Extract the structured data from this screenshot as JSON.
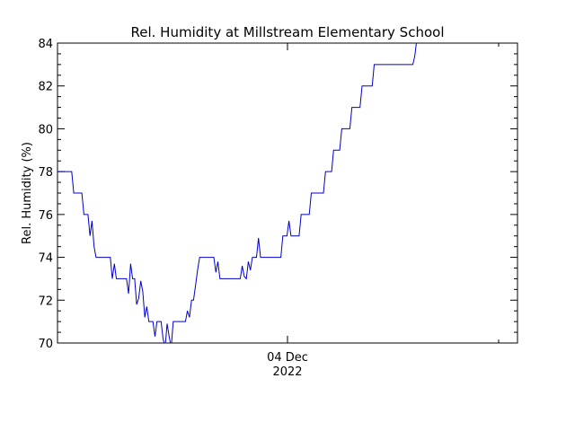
{
  "chart_data": {
    "type": "line",
    "title": "Rel. Humidity at Millstream Elementary School",
    "ylabel": "Rel. Humidity (%)",
    "xlabel": "",
    "ylim": [
      70,
      84
    ],
    "y_ticks": [
      70,
      72,
      74,
      76,
      78,
      80,
      82,
      84
    ],
    "x_tick_label_line1": "04 Dec",
    "x_tick_label_line2": "2022",
    "grid": false,
    "line_color": "#0000cc",
    "series": [
      {
        "values": [
          78,
          78,
          78,
          78,
          78,
          78,
          78,
          78,
          77,
          77,
          77,
          77,
          77,
          76,
          76,
          76,
          75,
          75.7,
          74.5,
          74,
          74,
          74,
          74,
          74,
          74,
          74,
          74,
          73,
          73.7,
          73,
          73,
          73,
          73,
          73,
          73,
          72.3,
          73.7,
          73,
          73,
          71.8,
          72.1,
          72.9,
          72.4,
          71.2,
          71.7,
          71,
          71,
          71,
          70.3,
          71,
          71,
          71,
          70.2,
          69.8,
          70.9,
          70.3,
          69.8,
          71,
          71,
          71,
          71,
          71,
          71,
          71,
          71.5,
          71.2,
          72,
          72,
          72.7,
          73.4,
          74,
          74,
          74,
          74,
          74,
          74,
          74,
          74,
          73.3,
          73.8,
          73,
          73,
          73,
          73,
          73,
          73,
          73,
          73,
          73,
          73,
          73,
          73.6,
          73.1,
          73,
          73.8,
          73.4,
          74,
          74,
          74,
          74.9,
          74,
          74,
          74,
          74,
          74,
          74,
          74,
          74,
          74,
          74,
          74,
          75,
          75,
          75,
          75.7,
          75,
          75,
          75,
          75,
          75,
          76,
          76,
          76,
          76,
          76,
          77,
          77,
          77,
          77,
          77,
          77,
          77,
          78,
          78,
          78,
          78,
          79,
          79,
          79,
          79,
          80,
          80,
          80,
          80,
          80,
          81,
          81,
          81,
          81,
          81,
          82,
          82,
          82,
          82,
          82,
          82,
          83,
          83,
          83,
          83,
          83,
          83,
          83,
          83,
          83,
          83,
          83,
          83,
          83,
          83,
          83,
          83,
          83,
          83,
          83,
          83,
          83.4,
          84.2
        ]
      }
    ]
  }
}
